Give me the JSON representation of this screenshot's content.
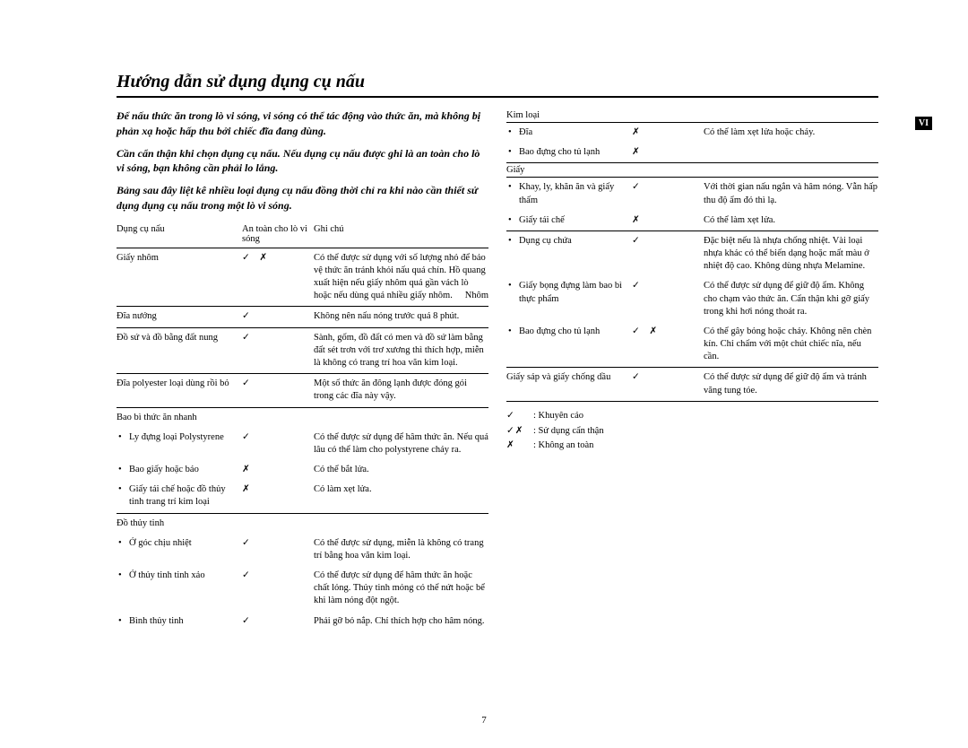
{
  "title": "Hướng dẫn sử dụng dụng cụ nấu",
  "intro": [
    "Để nấu thức ăn trong lò vi sóng, vi sóng có thể tác động vào thức ăn, mà không bị phản xạ hoặc hấp thu bởi chiếc đĩa đang dùng.",
    "Cần cẩn thận khi chọn dụng cụ nấu. Nếu dụng cụ nấu được ghi là an toàn cho lò vi sóng, bạn không cần phải lo lắng.",
    "Bảng sau đây liệt kê nhiều loại dụng cụ nấu đồng thời chỉ ra khi nào cần thiết sử dụng dụng cụ nấu trong một lò vi sóng."
  ],
  "headers": {
    "c1": "Dụng cụ nấu",
    "c2": "An toàn cho lò vi sóng",
    "c3": "Ghi chú"
  },
  "left_rows": [
    {
      "c1": "Giấy nhôm",
      "c2": "✓  ✗",
      "c3": "Có thể được sử dụng với số lượng nhỏ để bảo vệ thức ăn tránh khỏi nấu quá chín. Hồ quang xuất hiện nếu giấy nhôm quá gần vách lò hoặc nếu dùng quá nhiều giấy nhôm.",
      "sub": "Nhôm"
    },
    {
      "c1": "Đĩa nướng",
      "c2": "✓",
      "c3": "Không nên nấu nóng trước quá 8 phút."
    },
    {
      "c1": "Đồ sứ và đồ bằng đất nung",
      "c2": "✓",
      "c3": "Sành, gốm, đồ đất có men và đồ sứ làm bằng đất sét trơn với trơ xương thì thích hợp, miễn là không có trang trí hoa văn kim loại."
    },
    {
      "c1": "Đĩa polyester loại dùng rồi bỏ",
      "c2": "✓",
      "c3": "Một số thức ăn đông lạnh được đóng gói trong các đĩa này vậy."
    },
    {
      "group": "Bao bì thức ăn nhanh",
      "items": [
        {
          "c1": "Ly đựng loại Polystyrene",
          "c2": "✓",
          "c3": "Có thể được sử dụng để hâm thức ăn. Nếu quá lâu có thể làm cho polystyrene chảy ra."
        },
        {
          "c1": "Bao giấy hoặc báo",
          "c2": "✗",
          "c3": "Có thể bắt lửa."
        },
        {
          "c1": "Giấy tái chế hoặc đồ thủy tinh trang trí kim loại",
          "c2": "✗",
          "c3": "Có làm xẹt lửa."
        }
      ]
    },
    {
      "group": "Đồ thủy tinh",
      "items": [
        {
          "c1": "Ở góc chịu nhiệt",
          "c2": "✓",
          "c3": "Có thể được sử dụng, miễn là không có trang trí bằng hoa văn kim loại."
        },
        {
          "c1": "Ở thủy tinh tinh xảo",
          "c2": "✓",
          "c3": "Có thể được sử dụng để hâm thức ăn hoặc chất lỏng. Thủy tinh mỏng có thể nứt hoặc bể khi làm nóng đột ngột."
        },
        {
          "c1": "Bình thủy tinh",
          "c2": "✓",
          "c3": "Phải gỡ bỏ nắp. Chỉ thích hợp cho hâm nóng."
        }
      ]
    }
  ],
  "right_sections": [
    {
      "head": "Kim loại",
      "items": [
        {
          "c1": "Đĩa",
          "c2": "✗",
          "c3": "Có thể làm xẹt lửa hoặc cháy."
        },
        {
          "c1": "Bao đựng cho tủ lạnh",
          "c2": "✗",
          "c3": ""
        }
      ]
    },
    {
      "head": "Giấy",
      "items": [
        {
          "c1": "Khay, ly, khăn ăn và giấy thấm",
          "c2": "✓",
          "c3": "Với thời gian nấu ngắn và hâm nóng. Vẫn hấp thu độ ẩm đó thì lạ."
        },
        {
          "c1": "Giấy tái chế",
          "c2": "✗",
          "c3": "Có thể làm xẹt lửa."
        }
      ]
    },
    {
      "items": [
        {
          "c1": "Dụng cụ chứa",
          "c2": "✓",
          "c3": "Đặc biệt nếu là nhựa chống nhiệt. Vài loại nhựa khác có thể biến dạng hoặc mất màu ở nhiệt độ cao. Không dùng nhựa Melamine."
        },
        {
          "c1": "Giấy bọng đựng làm bao bì thực phẩm",
          "c2": "✓",
          "c3": "Có thể được sử dụng để giữ độ ẩm. Không cho chạm vào thức ăn. Cẩn thận khi gỡ giấy trong khi hơi nóng thoát ra."
        },
        {
          "c1": "Bao đựng cho tủ lạnh",
          "c2": "✓  ✗",
          "c3": "Có thể gây bỏng hoặc cháy. Không nên chèn kín. Chỉ chấm với một chút chiếc nĩa, nếu cần."
        }
      ]
    },
    {
      "items": [
        {
          "c1": "Giấy sáp và giấy chống dầu",
          "c2": "✓",
          "c3": "Có thể được sử dụng để giữ độ ẩm và tránh văng tung tóe."
        }
      ]
    }
  ],
  "legend": [
    {
      "sym": "✓",
      "txt": ": Khuyên cáo"
    },
    {
      "sym": "✓✗",
      "txt": ": Sử dụng cẩn thận"
    },
    {
      "sym": "✗",
      "txt": ": Không an toàn"
    }
  ],
  "page_number": "7",
  "lang_badge": "VI"
}
